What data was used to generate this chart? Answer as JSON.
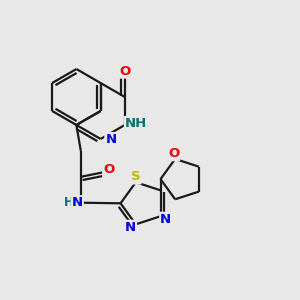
{
  "background_color": "#e8e8e8",
  "atom_colors": {
    "C": "#1a1a1a",
    "N": "#0000dd",
    "O": "#ee0000",
    "S": "#bbbb00",
    "H": "#007070"
  },
  "bond_color": "#1a1a1a",
  "bond_width": 1.6,
  "font_size_main": 9.5,
  "figsize": [
    3.0,
    3.0
  ],
  "dpi": 100
}
